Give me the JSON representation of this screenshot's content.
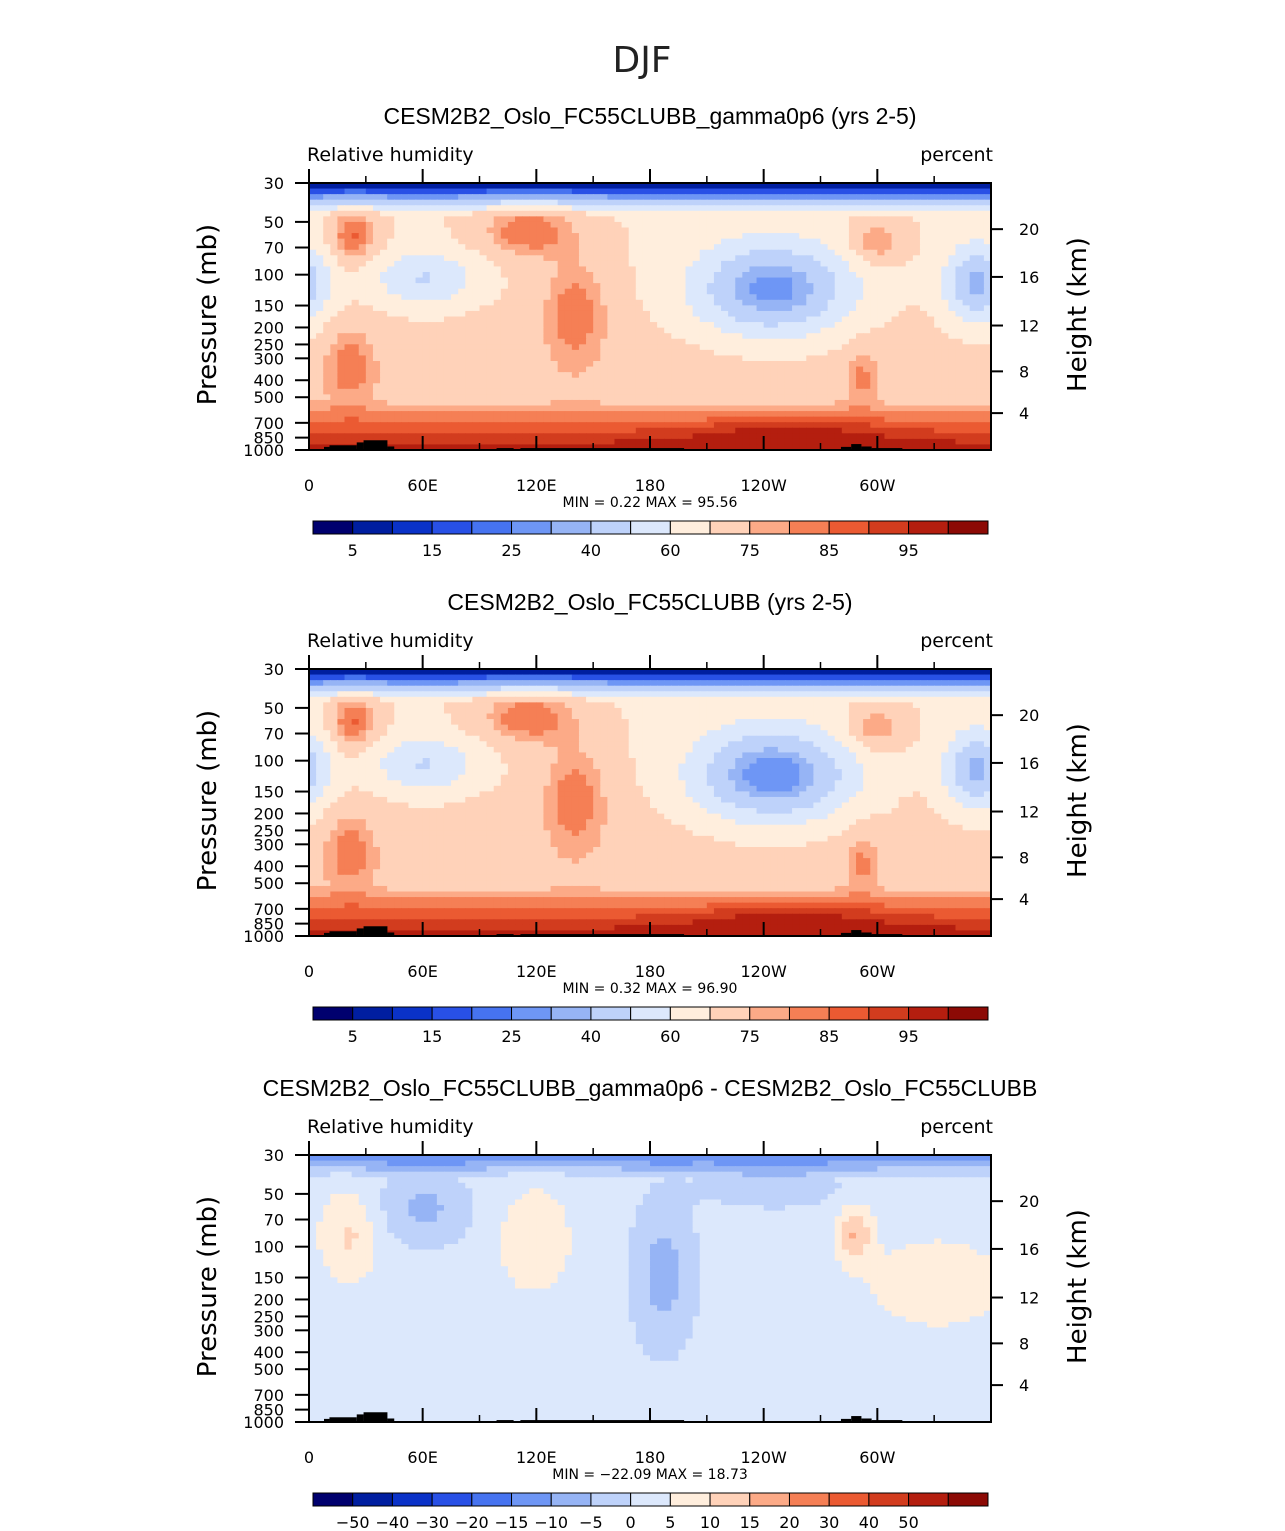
{
  "figure_title": "DJF",
  "chart_data": [
    {
      "type": "heatmap",
      "title": "CESM2B2_Oslo_FC55CLUBB_gamma0p6 (yrs 2-5)",
      "left_string": "Relative humidity",
      "right_string": "percent",
      "ylabel": "Pressure (mb)",
      "ylabel_right": "Height (km)",
      "x_ticks": [
        "0",
        "60E",
        "120E",
        "180",
        "120W",
        "60W"
      ],
      "y_ticks": [
        "30",
        "50",
        "70",
        "100",
        "150",
        "200",
        "250",
        "300",
        "400",
        "500",
        "700",
        "850",
        "1000"
      ],
      "height_ticks": [
        "20",
        "16",
        "12",
        "8",
        "4"
      ],
      "min": "0.22",
      "max": "95.56",
      "stats_text": "MIN =     0.22   MAX =   95.56",
      "colorbar_labels": [
        "5",
        "15",
        "25",
        "40",
        "60",
        "75",
        "85",
        "95"
      ],
      "colorbar_levels": [
        5,
        10,
        15,
        20,
        25,
        30,
        40,
        50,
        60,
        70,
        75,
        80,
        85,
        90,
        95
      ],
      "field": "abs"
    },
    {
      "type": "heatmap",
      "title": "CESM2B2_Oslo_FC55CLUBB (yrs 2-5)",
      "left_string": "Relative humidity",
      "right_string": "percent",
      "ylabel": "Pressure (mb)",
      "ylabel_right": "Height (km)",
      "x_ticks": [
        "0",
        "60E",
        "120E",
        "180",
        "120W",
        "60W"
      ],
      "y_ticks": [
        "30",
        "50",
        "70",
        "100",
        "150",
        "200",
        "250",
        "300",
        "400",
        "500",
        "700",
        "850",
        "1000"
      ],
      "height_ticks": [
        "20",
        "16",
        "12",
        "8",
        "4"
      ],
      "min": "0.32",
      "max": "96.90",
      "stats_text": "MIN =     0.32   MAX =   96.90",
      "colorbar_labels": [
        "5",
        "15",
        "25",
        "40",
        "60",
        "75",
        "85",
        "95"
      ],
      "colorbar_levels": [
        5,
        10,
        15,
        20,
        25,
        30,
        40,
        50,
        60,
        70,
        75,
        80,
        85,
        90,
        95
      ],
      "field": "abs"
    },
    {
      "type": "heatmap",
      "title": "CESM2B2_Oslo_FC55CLUBB_gamma0p6 - CESM2B2_Oslo_FC55CLUBB",
      "left_string": "Relative humidity",
      "right_string": "percent",
      "ylabel": "Pressure (mb)",
      "ylabel_right": "Height (km)",
      "x_ticks": [
        "0",
        "60E",
        "120E",
        "180",
        "120W",
        "60W"
      ],
      "y_ticks": [
        "30",
        "50",
        "70",
        "100",
        "150",
        "200",
        "250",
        "300",
        "400",
        "500",
        "700",
        "850",
        "1000"
      ],
      "height_ticks": [
        "20",
        "16",
        "12",
        "8",
        "4"
      ],
      "min": "-22.09",
      "max": "18.73",
      "stats_text": "MIN = −22.09   MAX =   18.73",
      "colorbar_labels": [
        "−50",
        "−40",
        "−30",
        "−20",
        "−15",
        "−10",
        "−5",
        "0",
        "5",
        "10",
        "15",
        "20",
        "30",
        "40",
        "50"
      ],
      "colorbar_levels": [
        -50,
        -40,
        -30,
        -20,
        -15,
        -10,
        -5,
        0,
        5,
        10,
        15,
        20,
        30,
        40,
        50
      ],
      "field": "diff"
    }
  ],
  "colors": {
    "palette": [
      "#00006e",
      "#001ea0",
      "#0a32c8",
      "#2850e6",
      "#4673f0",
      "#6e96f5",
      "#96b4f5",
      "#bed2fa",
      "#dce8fc",
      "#ffeedd",
      "#ffd2b9",
      "#fcaa87",
      "#f57f55",
      "#eb5a32",
      "#d23c1e",
      "#b41e0f",
      "#8c0a05"
    ],
    "land": "#000000"
  }
}
